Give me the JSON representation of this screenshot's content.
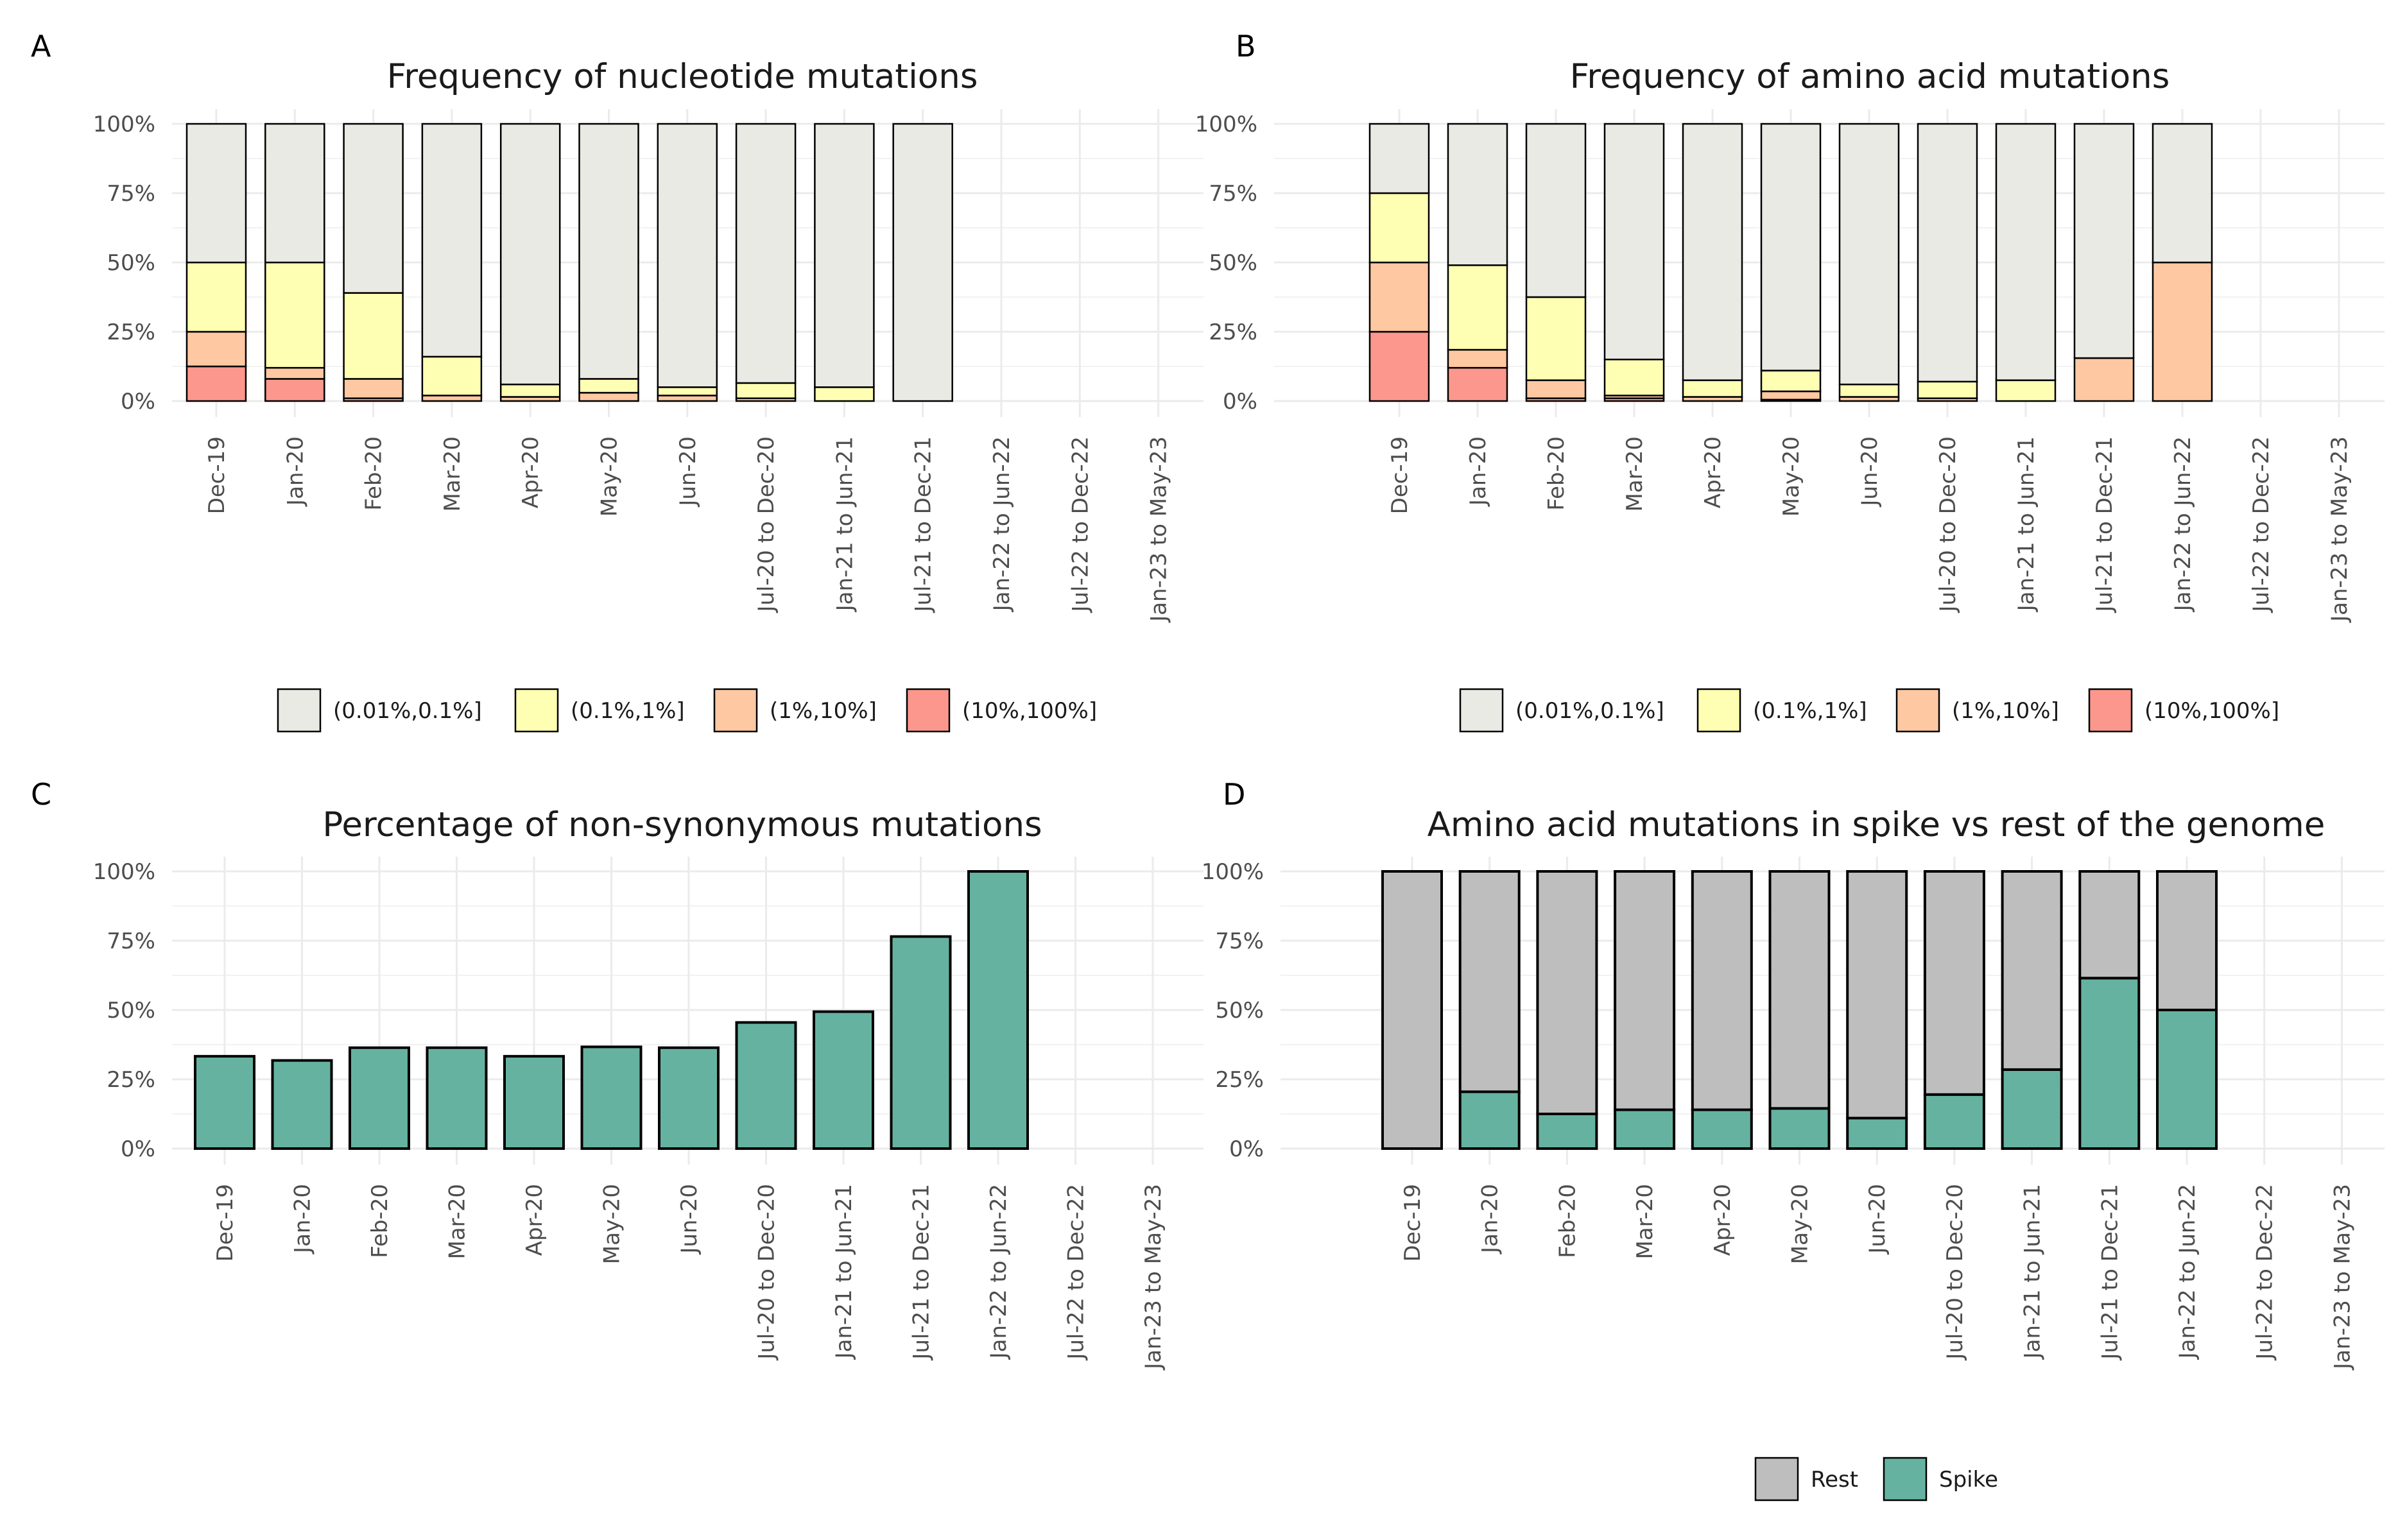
{
  "colors": {
    "freq_0": "#EAEAE5",
    "freq_1": "#FFFFB3",
    "freq_2": "#FDC8A2",
    "freq_3": "#FB978C",
    "rest": "#BEBEBE",
    "spike": "#66B2A0",
    "nonsyn": "#66B2A0"
  },
  "chart_data": [
    {
      "panel": "A",
      "type": "bar",
      "stacked": true,
      "title": "Frequency of nucleotide mutations",
      "xlabel": "",
      "ylabel": "",
      "ylim": [
        0,
        1
      ],
      "y_ticks": [
        "0%",
        "25%",
        "50%",
        "75%",
        "100%"
      ],
      "categories": [
        "Dec-19",
        "Jan-20",
        "Feb-20",
        "Mar-20",
        "Apr-20",
        "May-20",
        "Jun-20",
        "Jul-20 to Dec-20",
        "Jan-21 to Jun-21",
        "Jul-21 to Dec-21",
        "Jan-22 to Jun-22",
        "Jul-22 to Dec-22",
        "Jan-23 to May-23"
      ],
      "legend_position": "bottom",
      "series": [
        {
          "name": "(10%,100%]",
          "color": "#FB978C",
          "values": [
            0.125,
            0.08,
            0.01,
            0.0,
            0.0,
            0.0,
            0.0,
            0.0,
            0.0,
            0.0,
            null,
            null,
            null
          ]
        },
        {
          "name": "(1%,10%]",
          "color": "#FDC8A2",
          "values": [
            0.125,
            0.04,
            0.07,
            0.02,
            0.015,
            0.03,
            0.02,
            0.01,
            0.0,
            0.0,
            null,
            null,
            null
          ]
        },
        {
          "name": "(0.1%,1%]",
          "color": "#FFFFB3",
          "values": [
            0.25,
            0.38,
            0.31,
            0.14,
            0.045,
            0.05,
            0.03,
            0.055,
            0.05,
            0.0,
            null,
            null,
            null
          ]
        },
        {
          "name": "(0.01%,0.1%]",
          "color": "#EAEAE5",
          "values": [
            0.5,
            0.5,
            0.61,
            0.84,
            0.94,
            0.92,
            0.95,
            0.935,
            0.95,
            1.0,
            null,
            null,
            null
          ]
        }
      ],
      "legend": [
        "(0.01%,0.1%]",
        "(0.1%,1%]",
        "(1%,10%]",
        "(10%,100%]"
      ]
    },
    {
      "panel": "B",
      "type": "bar",
      "stacked": true,
      "title": "Frequency of amino acid mutations",
      "xlabel": "",
      "ylabel": "",
      "ylim": [
        0,
        1
      ],
      "y_ticks": [
        "0%",
        "25%",
        "50%",
        "75%",
        "100%"
      ],
      "categories": [
        "Dec-19",
        "Jan-20",
        "Feb-20",
        "Mar-20",
        "Apr-20",
        "May-20",
        "Jun-20",
        "Jul-20 to Dec-20",
        "Jan-21 to Jun-21",
        "Jul-21 to Dec-21",
        "Jan-22 to Jun-22",
        "Jul-22 to Dec-22",
        "Jan-23 to May-23"
      ],
      "legend_position": "bottom",
      "series": [
        {
          "name": "(10%,100%]",
          "color": "#FB978C",
          "values": [
            0.25,
            0.12,
            0.01,
            0.01,
            0.0,
            0.005,
            0.0,
            0.0,
            0.0,
            0.0,
            0.0,
            null,
            null
          ]
        },
        {
          "name": "(1%,10%]",
          "color": "#FDC8A2",
          "values": [
            0.25,
            0.065,
            0.065,
            0.01,
            0.015,
            0.03,
            0.015,
            0.01,
            0.0,
            0.155,
            0.5,
            null,
            null
          ]
        },
        {
          "name": "(0.1%,1%]",
          "color": "#FFFFB3",
          "values": [
            0.25,
            0.305,
            0.3,
            0.13,
            0.06,
            0.075,
            0.045,
            0.06,
            0.075,
            0.0,
            0.0,
            null,
            null
          ]
        },
        {
          "name": "(0.01%,0.1%]",
          "color": "#EAEAE5",
          "values": [
            0.25,
            0.51,
            0.625,
            0.85,
            0.925,
            0.89,
            0.94,
            0.93,
            0.925,
            0.845,
            0.5,
            null,
            null
          ]
        }
      ],
      "legend": [
        "(0.01%,0.1%]",
        "(0.1%,1%]",
        "(1%,10%]",
        "(10%,100%]"
      ]
    },
    {
      "panel": "C",
      "type": "bar",
      "stacked": false,
      "title": "Percentage of non-synonymous mutations",
      "xlabel": "",
      "ylabel": "",
      "ylim": [
        0,
        1
      ],
      "y_ticks": [
        "0%",
        "25%",
        "50%",
        "75%",
        "100%"
      ],
      "categories": [
        "Dec-19",
        "Jan-20",
        "Feb-20",
        "Mar-20",
        "Apr-20",
        "May-20",
        "Jun-20",
        "Jul-20 to Dec-20",
        "Jan-21 to Jun-21",
        "Jul-21 to Dec-21",
        "Jan-22 to Jun-22",
        "Jul-22 to Dec-22",
        "Jan-23 to May-23"
      ],
      "series": [
        {
          "name": "",
          "color": "#66B2A0",
          "values": [
            0.333,
            0.318,
            0.364,
            0.364,
            0.333,
            0.367,
            0.364,
            0.455,
            0.494,
            0.765,
            1.0,
            null,
            null
          ]
        }
      ],
      "legend": []
    },
    {
      "panel": "D",
      "type": "bar",
      "stacked": true,
      "title": "Amino acid mutations in spike vs rest of the genome",
      "xlabel": "",
      "ylabel": "",
      "ylim": [
        0,
        1
      ],
      "y_ticks": [
        "0%",
        "25%",
        "50%",
        "75%",
        "100%"
      ],
      "categories": [
        "Dec-19",
        "Jan-20",
        "Feb-20",
        "Mar-20",
        "Apr-20",
        "May-20",
        "Jun-20",
        "Jul-20 to Dec-20",
        "Jan-21 to Jun-21",
        "Jul-21 to Dec-21",
        "Jan-22 to Jun-22",
        "Jul-22 to Dec-22",
        "Jan-23 to May-23"
      ],
      "legend_position": "bottom",
      "series": [
        {
          "name": "Spike",
          "color": "#66B2A0",
          "values": [
            0.0,
            0.205,
            0.125,
            0.14,
            0.14,
            0.145,
            0.11,
            0.195,
            0.285,
            0.615,
            0.5,
            null,
            null
          ]
        },
        {
          "name": "Rest",
          "color": "#BEBEBE",
          "values": [
            1.0,
            0.795,
            0.875,
            0.86,
            0.86,
            0.855,
            0.89,
            0.805,
            0.715,
            0.385,
            0.5,
            null,
            null
          ]
        }
      ],
      "legend": [
        "Rest",
        "Spike"
      ]
    }
  ]
}
